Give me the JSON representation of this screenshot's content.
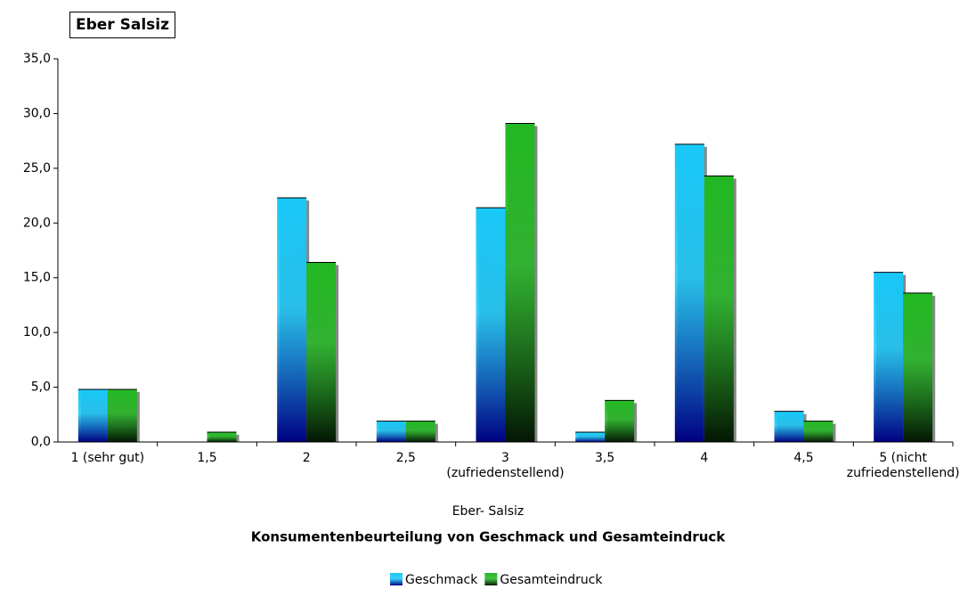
{
  "chart_data": {
    "type": "bar",
    "title": "Eber Salsiz",
    "x_label": "Eber- Salsiz",
    "subtitle": "Konsumentenbeurteilung von Geschmack und Gesamteindruck",
    "categories": [
      "1 (sehr gut)",
      "1,5",
      "2",
      "2,5",
      "3\n(zufriedenstellend)",
      "3,5",
      "4",
      "4,5",
      "5 (nicht\nzufriedenstellend)"
    ],
    "series": [
      {
        "name": "Geschmack",
        "color": "#18c8f8",
        "values": [
          4.8,
          0,
          22.3,
          1.9,
          21.4,
          0.9,
          27.2,
          2.8,
          15.5
        ]
      },
      {
        "name": "Gesamteindruck",
        "color": "#22b822",
        "values": [
          4.8,
          0.9,
          16.4,
          1.9,
          29.1,
          3.8,
          24.3,
          1.9,
          13.6
        ]
      }
    ],
    "ylim": [
      0,
      35
    ],
    "yticks": [
      {
        "value": 0,
        "label": "0,0"
      },
      {
        "value": 5,
        "label": "5,0"
      },
      {
        "value": 10,
        "label": "10,0"
      },
      {
        "value": 15,
        "label": "15,0"
      },
      {
        "value": 20,
        "label": "20,0"
      },
      {
        "value": 25,
        "label": "25,0"
      },
      {
        "value": 30,
        "label": "30,0"
      },
      {
        "value": 35,
        "label": "35,0"
      }
    ],
    "grid": false,
    "legend": "bottom"
  }
}
